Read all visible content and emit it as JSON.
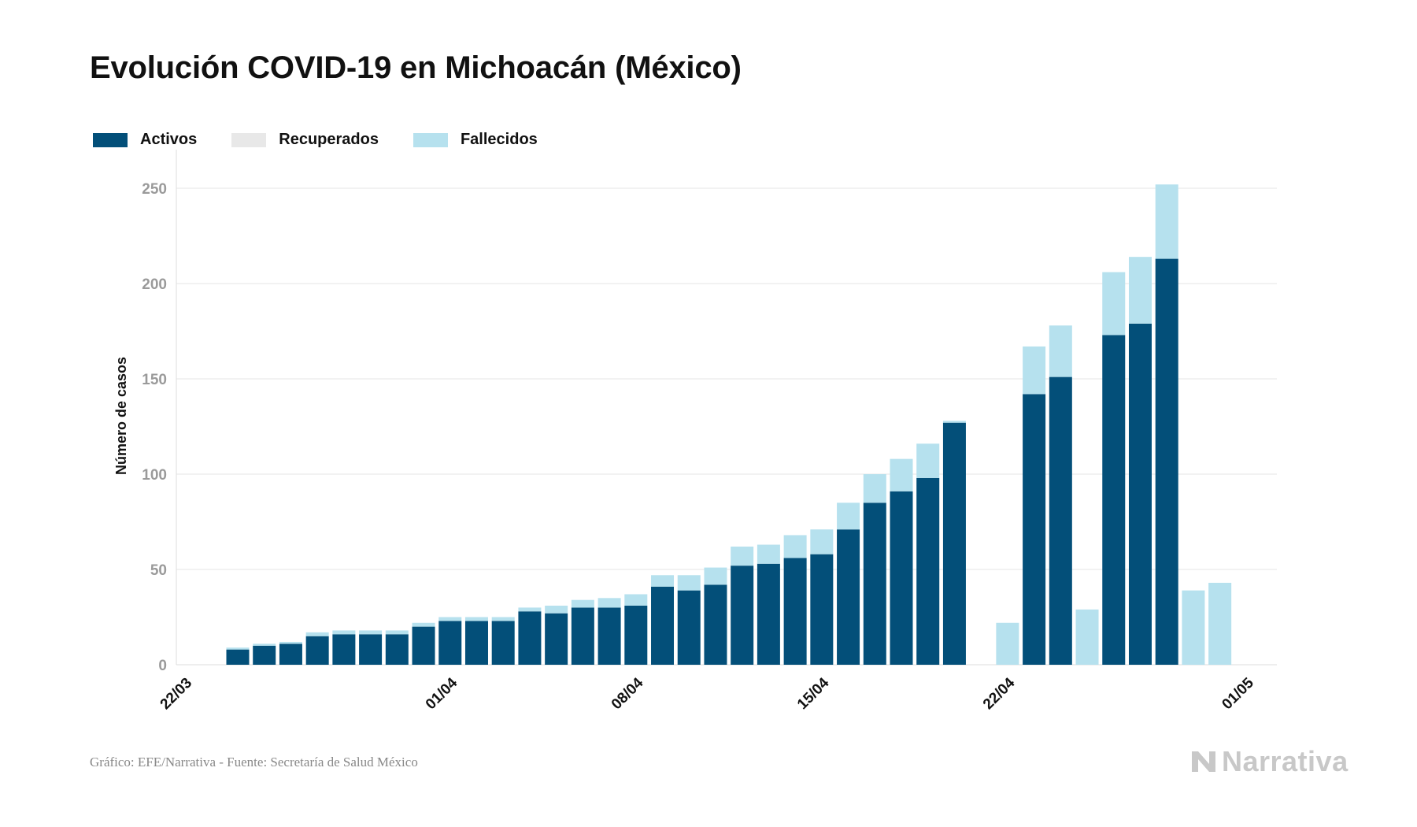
{
  "title": "Evolución COVID-19 en Michoacán (México)",
  "legend": [
    {
      "label": "Activos",
      "color": "#034f79"
    },
    {
      "label": "Recuperados",
      "color": "#e8e8e8"
    },
    {
      "label": "Fallecidos",
      "color": "#b6e1ee"
    }
  ],
  "footer": "Gráfico: EFE/Narrativa - Fuente: Secretaría de Salud México",
  "logo_text": "Narrativa",
  "chart_data": {
    "type": "bar",
    "stacked": true,
    "ylabel": "Número de casos",
    "ylim": [
      0,
      262
    ],
    "yticks": [
      0,
      50,
      100,
      150,
      200,
      250
    ],
    "x_tick_labels": [
      "22/03",
      "01/04",
      "08/04",
      "15/04",
      "22/04",
      "01/05"
    ],
    "x_tick_days": [
      0,
      10,
      17,
      24,
      31,
      40
    ],
    "grid": true,
    "legend_position": "top-left",
    "days": [
      "24/03",
      "25/03",
      "26/03",
      "27/03",
      "28/03",
      "29/03",
      "30/03",
      "31/03",
      "01/04",
      "02/04",
      "03/04",
      "04/04",
      "05/04",
      "06/04",
      "07/04",
      "08/04",
      "09/04",
      "10/04",
      "11/04",
      "12/04",
      "13/04",
      "14/04",
      "15/04",
      "16/04",
      "17/04",
      "18/04",
      "19/04",
      "20/04",
      "21/04",
      "22/04",
      "23/04",
      "24/04",
      "25/04",
      "26/04",
      "27/04",
      "28/04",
      "29/04",
      "30/04"
    ],
    "series": [
      {
        "name": "Activos",
        "color": "#034f79",
        "values": [
          8,
          10,
          11,
          15,
          16,
          16,
          16,
          20,
          23,
          23,
          23,
          28,
          27,
          30,
          30,
          31,
          41,
          39,
          42,
          52,
          53,
          56,
          58,
          71,
          85,
          91,
          98,
          127,
          0,
          0,
          142,
          151,
          0,
          173,
          179,
          213,
          0,
          0
        ]
      },
      {
        "name": "Recuperados",
        "color": "#e8e8e8",
        "values": [
          0,
          0,
          0,
          0,
          0,
          0,
          0,
          0,
          0,
          0,
          0,
          0,
          0,
          0,
          0,
          0,
          0,
          0,
          0,
          0,
          0,
          0,
          0,
          0,
          0,
          0,
          0,
          0,
          0,
          0,
          0,
          0,
          0,
          0,
          0,
          0,
          0,
          0
        ]
      },
      {
        "name": "Fallecidos",
        "color": "#b6e1ee",
        "values": [
          1,
          1,
          1,
          2,
          2,
          2,
          2,
          2,
          2,
          2,
          2,
          2,
          4,
          4,
          5,
          6,
          6,
          8,
          9,
          10,
          10,
          12,
          13,
          14,
          15,
          17,
          18,
          1,
          0,
          22,
          25,
          27,
          29,
          33,
          35,
          39,
          39,
          43
        ]
      }
    ]
  }
}
